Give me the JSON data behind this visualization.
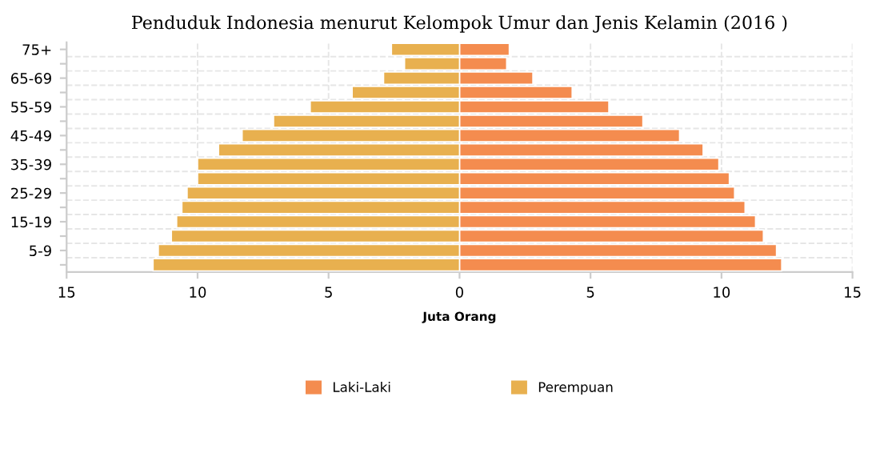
{
  "chart_data": {
    "type": "bar",
    "orientation": "horizontal",
    "title": "Penduduk Indonesia menurut Kelompok Umur dan Jenis Kelamin (2016 )",
    "xlabel": "Juta Orang",
    "categories": [
      "75+",
      null,
      "65-69",
      null,
      "55-59",
      null,
      "45-49",
      null,
      "35-39",
      null,
      "25-29",
      null,
      "15-19",
      null,
      "5-9",
      null
    ],
    "series": [
      {
        "name": "Laki-Laki",
        "color": "#f48c4f",
        "values": [
          1.9,
          1.8,
          2.8,
          4.3,
          5.7,
          7.0,
          8.4,
          9.3,
          9.9,
          10.3,
          10.5,
          10.9,
          11.3,
          11.6,
          12.1,
          12.3
        ]
      },
      {
        "name": "Perempuan",
        "color": "#e8b04f",
        "values": [
          -2.6,
          -2.1,
          -2.9,
          -4.1,
          -5.7,
          -7.1,
          -8.3,
          -9.2,
          -10.0,
          -10.0,
          -10.4,
          -10.6,
          -10.8,
          -11.0,
          -11.5,
          -11.7
        ]
      }
    ],
    "xlim": [
      -15,
      15
    ],
    "xticks": [
      {
        "value": -15,
        "label": "15"
      },
      {
        "value": -10,
        "label": "10"
      },
      {
        "value": -5,
        "label": "5"
      },
      0,
      5,
      10,
      15
    ],
    "grid": true,
    "legend": "bottom",
    "stacked": true
  }
}
